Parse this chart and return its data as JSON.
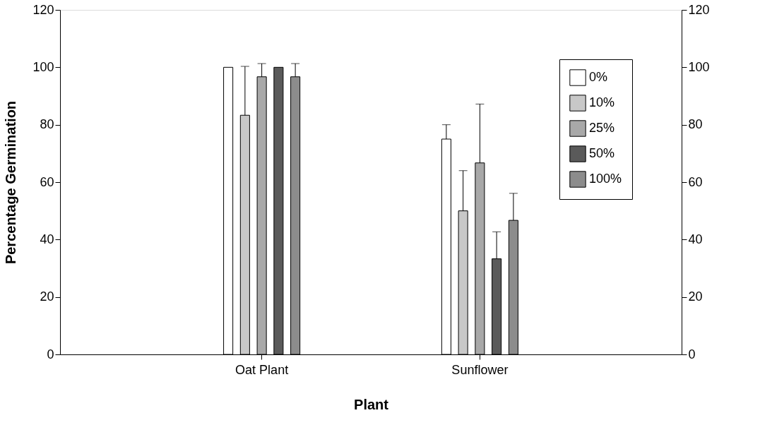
{
  "chart_data": {
    "type": "bar",
    "xlabel": "Plant",
    "ylabel": "Percentage Germination",
    "categories": [
      "Oat Plant",
      "Sunflower"
    ],
    "series": [
      {
        "name": "0%",
        "color": "#ffffff",
        "values": [
          100,
          75
        ],
        "errors": [
          null,
          [
            75,
            80
          ]
        ]
      },
      {
        "name": "10%",
        "color": "#c8c8c8",
        "values": [
          83.3,
          50
        ],
        "errors": [
          [
            83.3,
            100.3
          ],
          [
            50,
            64
          ]
        ]
      },
      {
        "name": "25%",
        "color": "#a8a8a8",
        "values": [
          96.7,
          66.7
        ],
        "errors": [
          [
            96.7,
            101.3
          ],
          [
            66.7,
            87.2
          ]
        ]
      },
      {
        "name": "50%",
        "color": "#5a5a5a",
        "values": [
          100,
          33.3
        ],
        "errors": [
          null,
          [
            33.3,
            42.7
          ]
        ]
      },
      {
        "name": "100%",
        "color": "#8c8c8c",
        "values": [
          96.7,
          46.7
        ],
        "errors": [
          [
            96.7,
            101.3
          ],
          [
            46.7,
            56.1
          ]
        ]
      }
    ],
    "ylim": [
      0,
      120
    ],
    "yticks": [
      0,
      20,
      40,
      60,
      80,
      100,
      120
    ],
    "y2lim": [
      0,
      120
    ],
    "y2ticks": [
      0,
      20,
      40,
      60,
      80,
      100,
      120
    ],
    "grid": false,
    "legend": "top right"
  }
}
